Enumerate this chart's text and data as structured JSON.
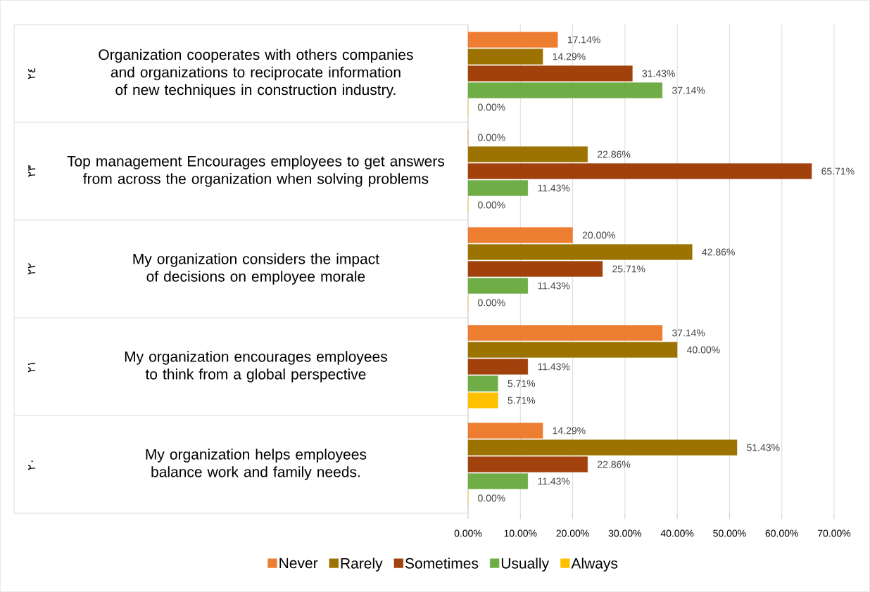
{
  "chart_data": {
    "type": "bar",
    "orientation": "horizontal",
    "categories": [
      "Organization cooperates with others companies and organizations to reciprocate information of new techniques in construction industry.",
      "Top management Encourages employees to get answers from across the organization when solving problems",
      "My organization considers the impact of decisions on employee morale",
      "My organization encourages employees to think from a global perspective",
      "My organization helps employees balance work and family needs."
    ],
    "annotations": [
      "٢٤",
      "٢٣",
      "٢٢",
      "٢١",
      "٢٠"
    ],
    "series": [
      {
        "name": "Never",
        "color": "#ed7d31",
        "values": [
          17.14,
          0,
          20,
          37.14,
          14.29
        ],
        "value_labels": [
          "17.14%",
          "0.00%",
          "20.00%",
          "37.14%",
          "14.29%"
        ]
      },
      {
        "name": "Rarely",
        "color": "#9c7300",
        "values": [
          14.29,
          22.86,
          42.86,
          40,
          51.43
        ],
        "value_labels": [
          "14.29%",
          "22.86%",
          "42.86%",
          "40.00%",
          "51.43%"
        ]
      },
      {
        "name": "Sometimes",
        "color": "#a1420c",
        "values": [
          31.43,
          65.71,
          25.71,
          11.43,
          22.86
        ],
        "value_labels": [
          "31.43%",
          "65.71%",
          "25.71%",
          "11.43%",
          "22.86%"
        ]
      },
      {
        "name": "Usually",
        "color": "#70ad47",
        "values": [
          37.14,
          11.43,
          11.43,
          5.71,
          11.43
        ],
        "value_labels": [
          "37.14%",
          "11.43%",
          "11.43%",
          "5.71%",
          "11.43%"
        ]
      },
      {
        "name": "Always",
        "color": "#ffc000",
        "values": [
          0,
          0,
          0,
          5.71,
          0
        ],
        "value_labels": [
          "0.00%",
          "0.00%",
          "0.00%",
          "5.71%",
          "0.00%"
        ]
      }
    ],
    "xlim": [
      0,
      70
    ],
    "xticks": [
      {
        "value": 0,
        "label": "0.00%"
      },
      {
        "value": 10,
        "label": "10.00%"
      },
      {
        "value": 20,
        "label": "20.00%"
      },
      {
        "value": 30,
        "label": "30.00%"
      },
      {
        "value": 40,
        "label": "40.00%"
      },
      {
        "value": 50,
        "label": "50.00%"
      },
      {
        "value": 60,
        "label": "60.00%"
      },
      {
        "value": 70,
        "label": "70.00%"
      }
    ],
    "grid": "x",
    "legend": "bottom"
  }
}
